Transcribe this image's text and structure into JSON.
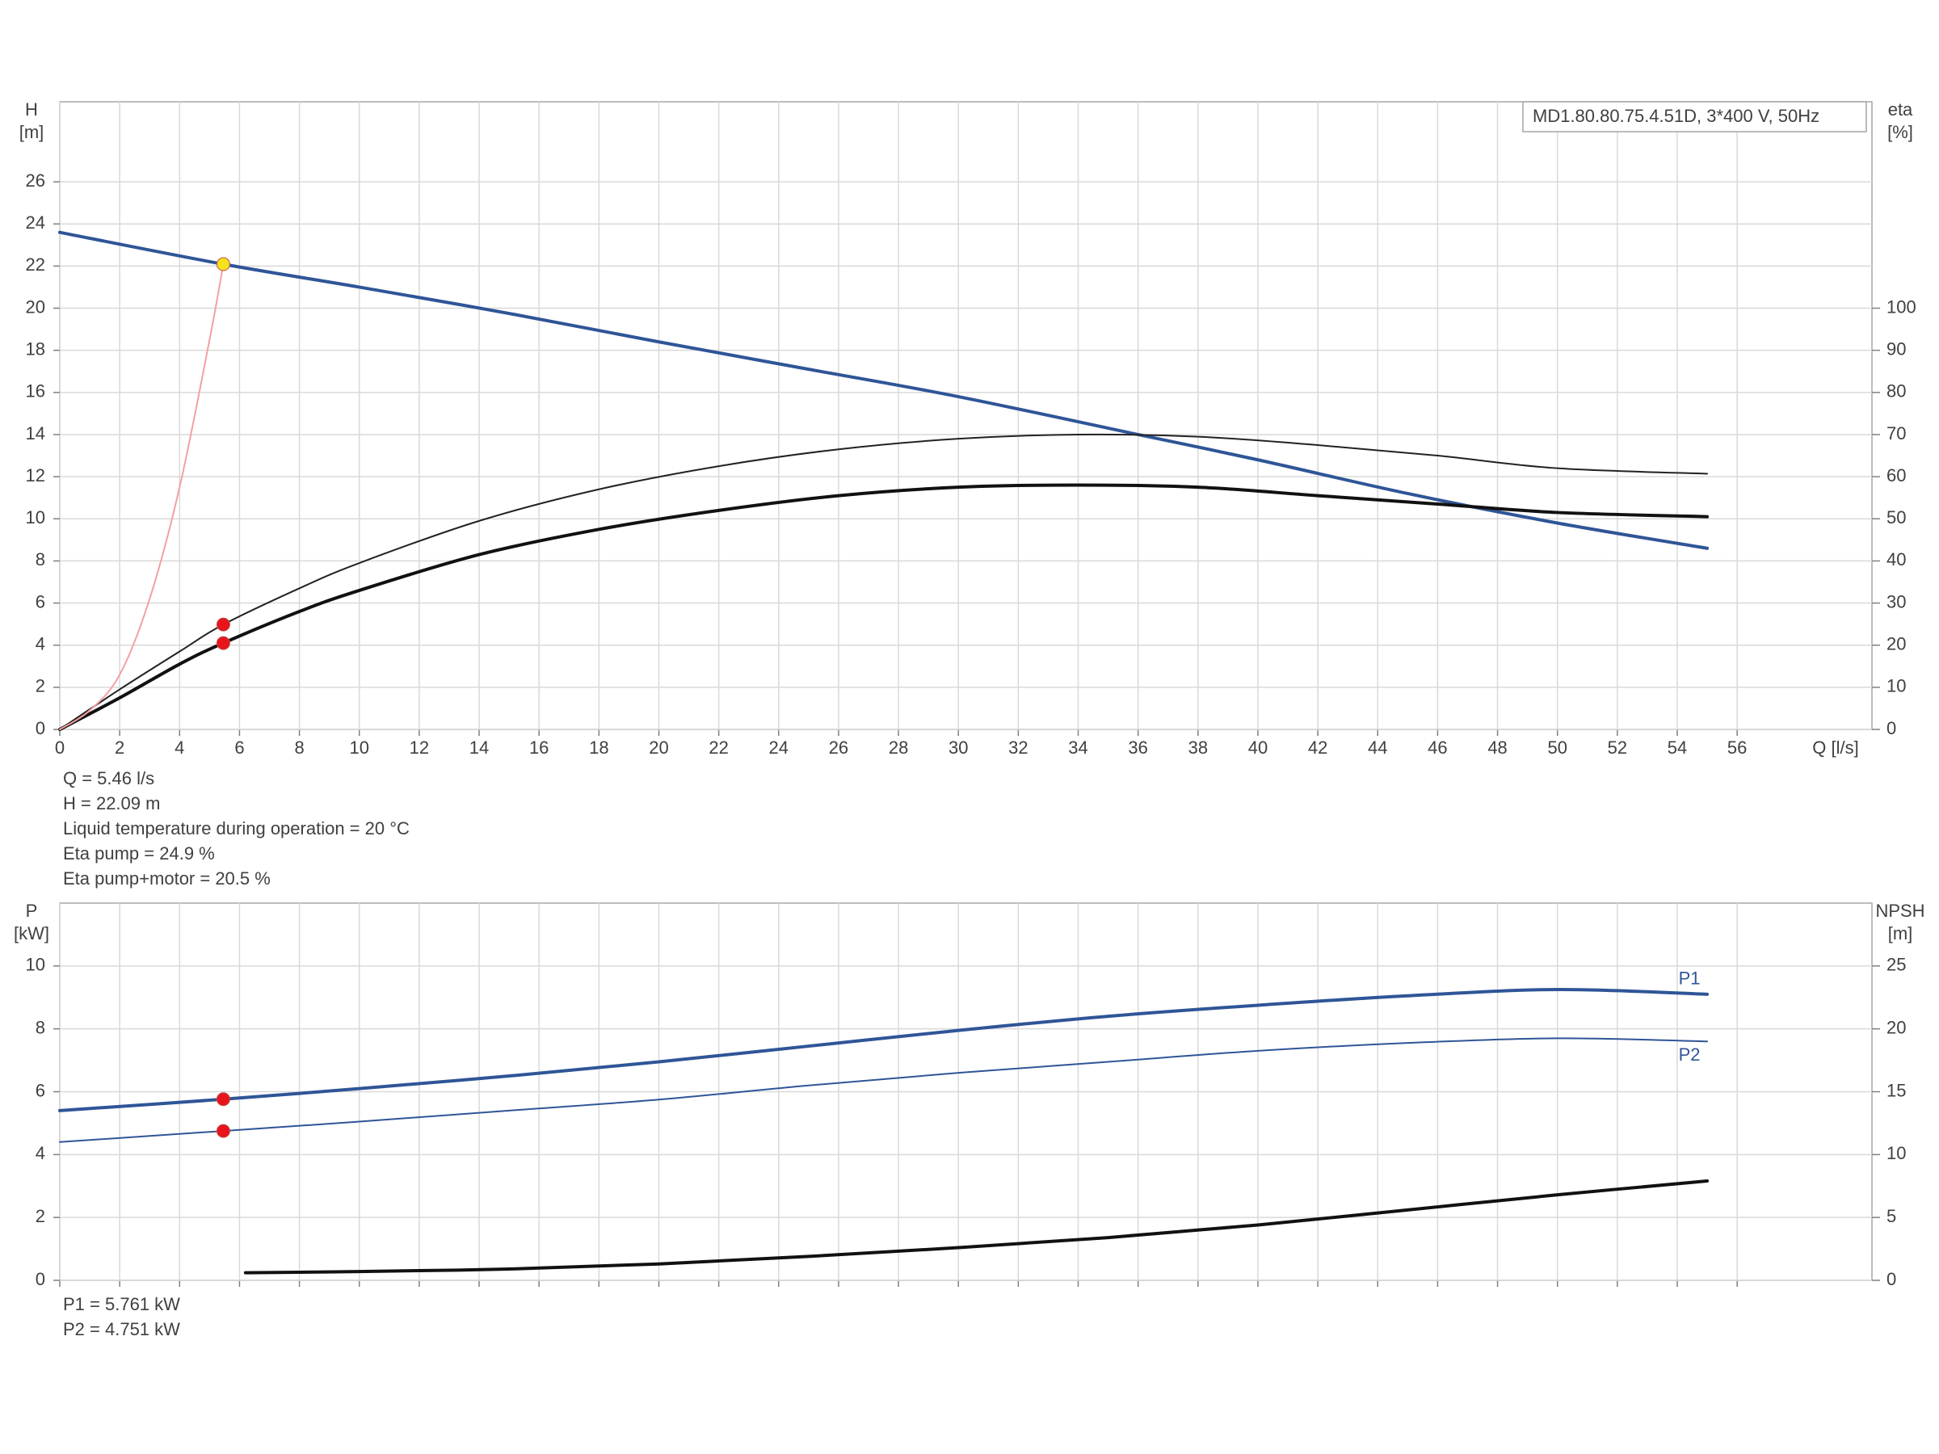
{
  "chart_data": [
    {
      "type": "line",
      "model": "MD1.80.80.75.4.51D, 3*400 V, 50Hz",
      "ylabel": [
        "H",
        "[m]"
      ],
      "y2label": [
        "eta",
        "[%]"
      ],
      "xlabel": "Q [l/s]",
      "xlim": [
        0,
        60.5
      ],
      "xticks": [
        0,
        2,
        4,
        6,
        8,
        10,
        12,
        14,
        16,
        18,
        20,
        22,
        24,
        26,
        28,
        30,
        32,
        34,
        36,
        38,
        40,
        42,
        44,
        46,
        48,
        50,
        52,
        54,
        56
      ],
      "ylim": [
        0,
        29.8
      ],
      "yticks": [
        0,
        2,
        4,
        6,
        8,
        10,
        12,
        14,
        16,
        18,
        20,
        22,
        24,
        26
      ],
      "y2lim": [
        0,
        149
      ],
      "y2ticks": [
        0,
        10,
        20,
        30,
        40,
        50,
        60,
        70,
        80,
        90,
        100
      ],
      "grid": true,
      "series": [
        {
          "color": "#2f5597",
          "linestyle": "thick",
          "x": [
            0,
            5.46,
            10,
            15,
            20,
            25,
            30,
            36,
            40,
            45,
            50,
            55
          ],
          "values": [
            23.6,
            22.09,
            21.0,
            19.75,
            18.4,
            17.1,
            15.8,
            14.0,
            12.8,
            11.2,
            9.8,
            8.6
          ]
        },
        {
          "color": "#222222",
          "linestyle": "thin",
          "axis": "y2",
          "x": [
            0,
            2,
            4,
            5.46,
            8,
            10,
            14,
            18,
            22,
            26,
            30,
            34,
            38,
            42,
            46,
            50,
            55
          ],
          "values": [
            0,
            9.5,
            18.5,
            24.9,
            33.5,
            39.5,
            49.5,
            57,
            62.5,
            66.5,
            69,
            70,
            69.5,
            67.5,
            65,
            62,
            60.7
          ]
        },
        {
          "color": "#111111",
          "linestyle": "thick",
          "axis": "y2",
          "x": [
            0,
            2,
            4,
            5.46,
            8,
            10,
            14,
            18,
            22,
            26,
            30,
            34,
            38,
            42,
            46,
            50,
            55
          ],
          "values": [
            0,
            7.5,
            15.5,
            20.5,
            28,
            33,
            41.5,
            47.5,
            52,
            55.5,
            57.5,
            58,
            57.5,
            55.5,
            53.5,
            51.5,
            50.5
          ]
        },
        {
          "color": "#f4a0a0",
          "linestyle": "thin",
          "x": [
            0,
            1,
            2,
            3,
            4,
            5,
            5.46
          ],
          "values": [
            0,
            0.9,
            2.6,
            6.2,
            11.5,
            18.5,
            22.09
          ]
        }
      ],
      "markers": [
        {
          "x": 5.46,
          "y": 22.09,
          "color": "#f4e21a"
        },
        {
          "x": 5.46,
          "y": 24.9,
          "axis": "y2",
          "color": "#e8141c"
        },
        {
          "x": 5.46,
          "y": 20.5,
          "axis": "y2",
          "color": "#e8141c"
        }
      ],
      "annotations": [
        "Q = 5.46 l/s",
        "H = 22.09 m",
        "Liquid temperature during operation = 20 °C",
        "Eta pump = 24.9 %",
        "Eta pump+motor = 20.5 %"
      ]
    },
    {
      "type": "line",
      "ylabel": [
        "P",
        "[kW]"
      ],
      "y2label": [
        "NPSH",
        "[m]"
      ],
      "xlim": [
        0,
        60.5
      ],
      "xticks": [
        0,
        2,
        4,
        6,
        8,
        10,
        12,
        14,
        16,
        18,
        20,
        22,
        24,
        26,
        28,
        30,
        32,
        34,
        36,
        38,
        40,
        42,
        44,
        46,
        48,
        50,
        52,
        54,
        56
      ],
      "xtick_labels": false,
      "ylim": [
        0,
        12
      ],
      "yticks": [
        0,
        2,
        4,
        6,
        8,
        10
      ],
      "y2lim": [
        0,
        30
      ],
      "y2ticks": [
        0,
        5,
        10,
        15,
        20,
        25
      ],
      "grid": true,
      "series": [
        {
          "name": "P1",
          "color": "#2f5597",
          "linestyle": "thick",
          "x": [
            0,
            5.46,
            10,
            15,
            20,
            25,
            30,
            35,
            40,
            45,
            50,
            55
          ],
          "values": [
            5.4,
            5.761,
            6.1,
            6.5,
            6.95,
            7.45,
            7.95,
            8.4,
            8.75,
            9.05,
            9.25,
            9.1
          ]
        },
        {
          "name": "P2",
          "color": "#2f5597",
          "linestyle": "thin",
          "x": [
            0,
            5.46,
            10,
            15,
            20,
            25,
            30,
            35,
            40,
            45,
            50,
            55
          ],
          "values": [
            4.4,
            4.751,
            5.05,
            5.4,
            5.75,
            6.2,
            6.6,
            6.95,
            7.3,
            7.55,
            7.7,
            7.6
          ]
        },
        {
          "color": "#111111",
          "linestyle": "thick",
          "axis": "y2",
          "x": [
            6.2,
            10,
            15,
            20,
            25,
            30,
            35,
            40,
            45,
            50,
            55
          ],
          "values": [
            0.6,
            0.7,
            0.9,
            1.3,
            1.9,
            2.6,
            3.4,
            4.4,
            5.6,
            6.8,
            7.9
          ]
        }
      ],
      "markers": [
        {
          "x": 5.46,
          "y": 5.761,
          "color": "#e8141c"
        },
        {
          "x": 5.46,
          "y": 4.751,
          "color": "#e8141c"
        }
      ],
      "annotations": [
        "P1 = 5.761 kW",
        "P2 = 4.751 kW"
      ]
    }
  ]
}
